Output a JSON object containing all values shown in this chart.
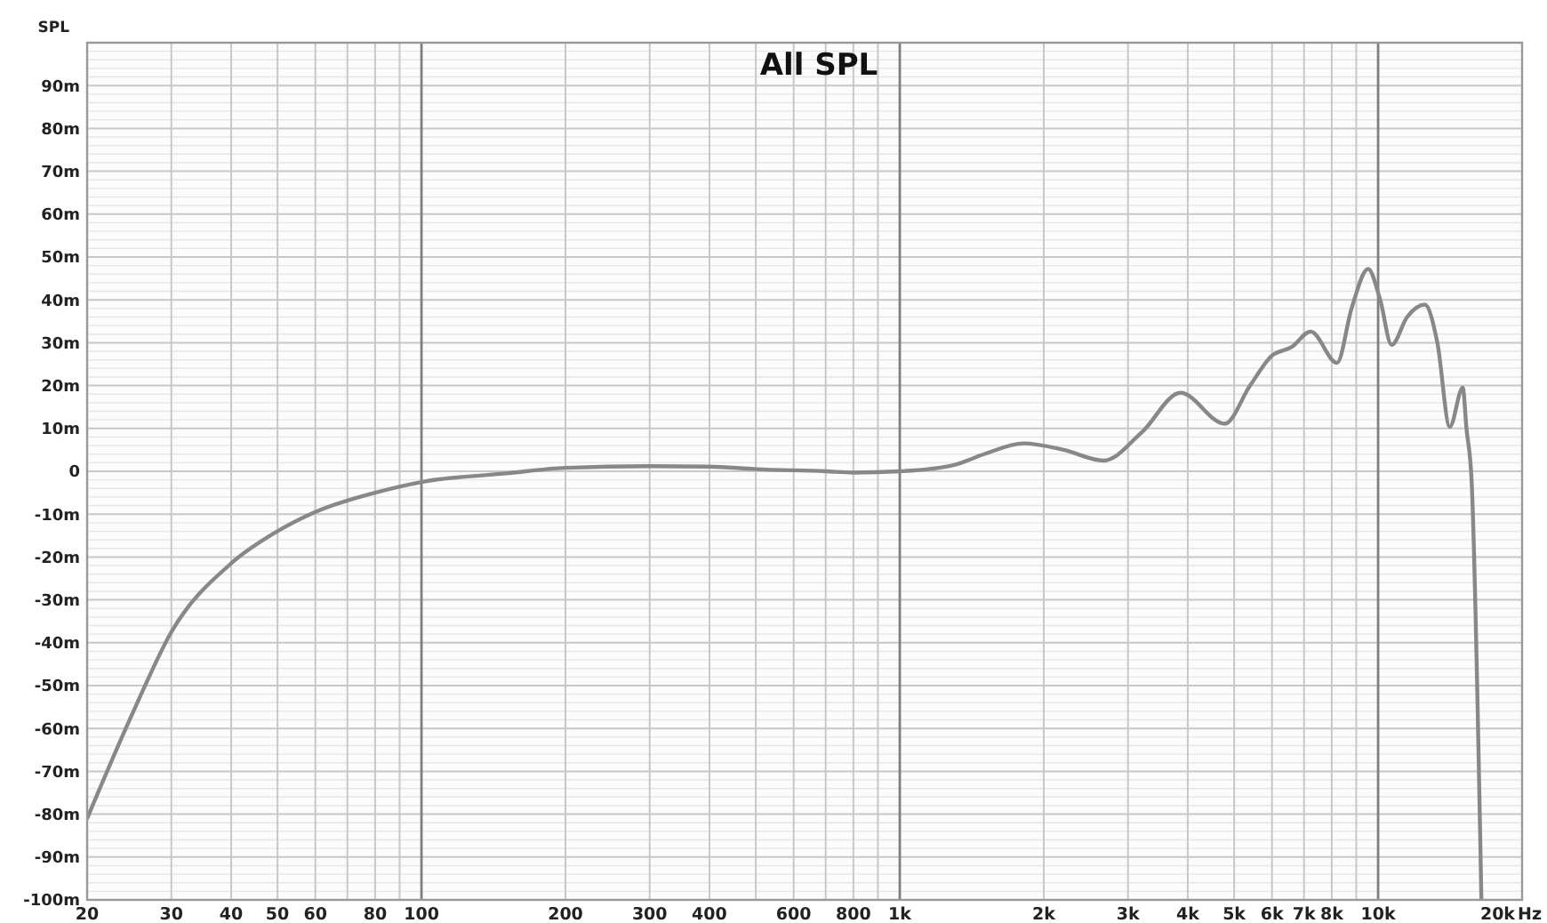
{
  "chart_data": {
    "type": "line",
    "title": "All SPL",
    "ylabel": "SPL",
    "log": "x",
    "grid": true,
    "marker": "none",
    "line_style": "solid",
    "xlim": [
      20,
      20000
    ],
    "xticks": [
      20,
      30,
      40,
      50,
      60,
      {
        "value": 70,
        "label": null
      },
      80,
      {
        "value": 90,
        "label": null
      },
      100,
      200,
      300,
      400,
      {
        "value": 500,
        "label": null
      },
      600,
      {
        "value": 700,
        "label": null
      },
      800,
      {
        "value": 900,
        "label": null
      },
      {
        "value": 1000,
        "label": "1k"
      },
      {
        "value": 2000,
        "label": "2k"
      },
      {
        "value": 3000,
        "label": "3k"
      },
      {
        "value": 4000,
        "label": "4k"
      },
      {
        "value": 5000,
        "label": "5k"
      },
      {
        "value": 6000,
        "label": "6k"
      },
      {
        "value": 7000,
        "label": "7k"
      },
      {
        "value": 8000,
        "label": "8k"
      },
      {
        "value": 9000,
        "label": null
      },
      {
        "value": 10000,
        "label": "10k"
      },
      {
        "value": 20000,
        "label": "20k"
      }
    ],
    "xlabel": "Hz",
    "ylim": [
      -100,
      100
    ],
    "yticks": [
      {
        "value": -100,
        "label": "-100m"
      },
      {
        "value": -90,
        "label": "-90m"
      },
      {
        "value": -80,
        "label": "-80m"
      },
      {
        "value": -70,
        "label": "-70m"
      },
      {
        "value": -60,
        "label": "-60m"
      },
      {
        "value": -50,
        "label": "-50m"
      },
      {
        "value": -40,
        "label": "-40m"
      },
      {
        "value": -30,
        "label": "-30m"
      },
      {
        "value": -20,
        "label": "-20m"
      },
      {
        "value": -10,
        "label": "-10m"
      },
      0,
      {
        "value": 10,
        "label": "10m"
      },
      {
        "value": 20,
        "label": "20m"
      },
      {
        "value": 30,
        "label": "30m"
      },
      {
        "value": 40,
        "label": "40m"
      },
      {
        "value": 50,
        "label": "50m"
      },
      {
        "value": 60,
        "label": "60m"
      },
      {
        "value": 70,
        "label": "70m"
      },
      {
        "value": 80,
        "label": "80m"
      },
      {
        "value": 90,
        "label": "90m"
      },
      {
        "value": 100,
        "label": null
      }
    ],
    "series": [
      {
        "color": "#888888",
        "x": [
          20,
          25,
          30,
          40,
          50,
          60,
          80,
          100,
          150,
          200,
          300,
          400,
          500,
          700,
          800,
          1000,
          1300,
          1500,
          1816,
          2200,
          2667,
          3200,
          3864,
          4778,
          5400,
          6000,
          6600,
          7228,
          8207,
          8800,
          9530,
          10100,
          10670,
          11500,
          12520,
          13300,
          14120,
          15030,
          15300,
          15680,
          16440
        ],
        "values": [
          -81,
          -56,
          -37.5,
          -21.5,
          -14,
          -9.5,
          -5,
          -2.5,
          -0.5,
          0.8,
          1.2,
          1.1,
          0.5,
          0,
          -0.3,
          0,
          1.5,
          4,
          6.5,
          5,
          2.5,
          9,
          18.3,
          11.1,
          20,
          27,
          29,
          32.6,
          25.3,
          38,
          47.2,
          40,
          29.5,
          36,
          38.9,
          30,
          10.4,
          19.5,
          10,
          -2,
          -100
        ]
      }
    ]
  }
}
